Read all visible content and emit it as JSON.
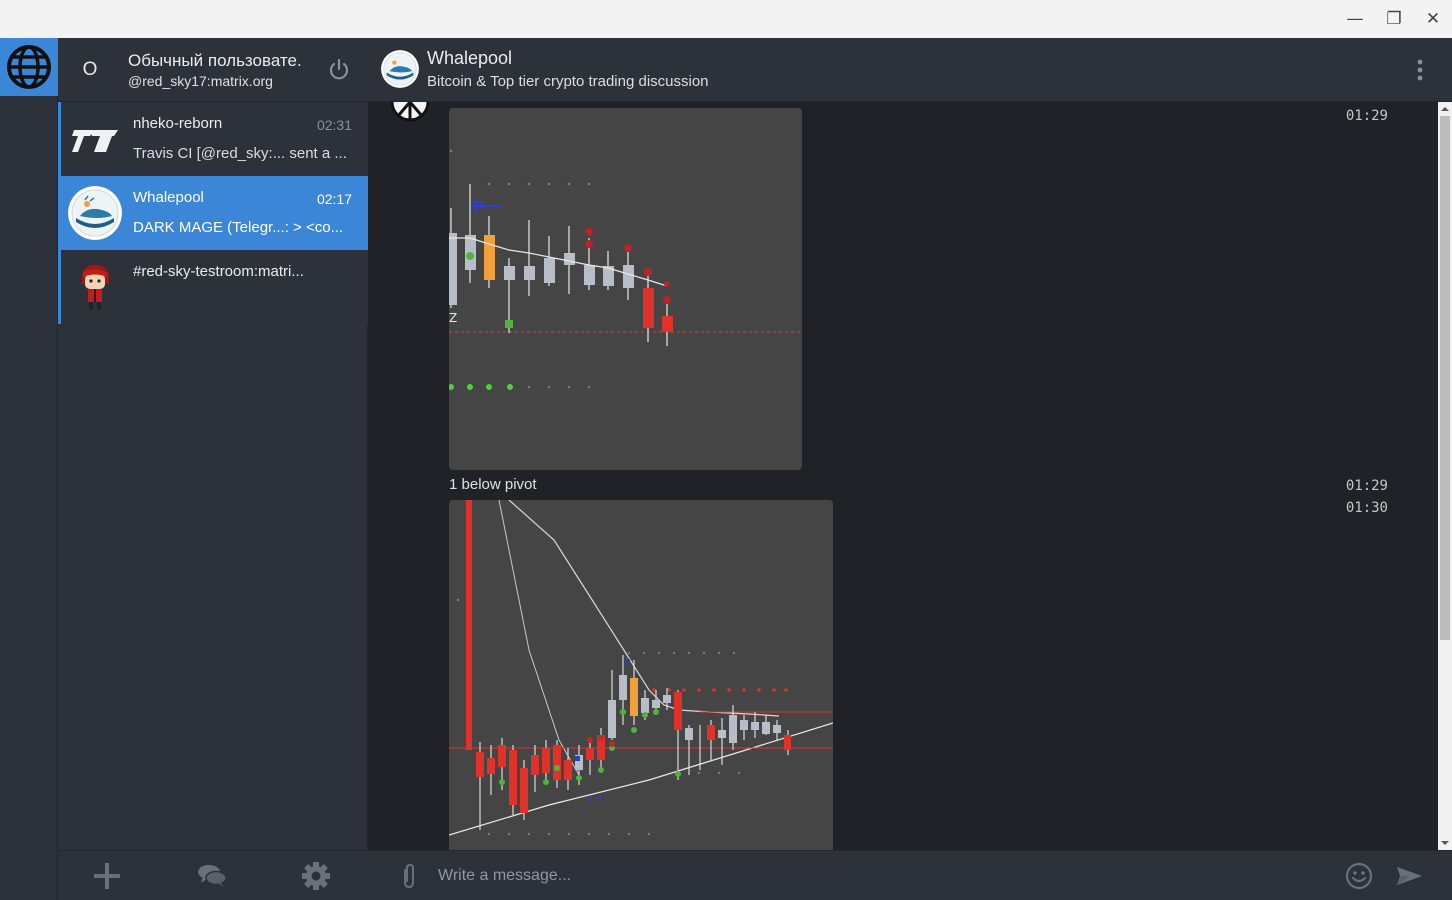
{
  "window": {
    "minimize_glyph": "—",
    "maximize_glyph": "❐",
    "close_glyph": "✕"
  },
  "user": {
    "initial": "O",
    "display_name": "Обычный пользовате.",
    "user_id": "@red_sky17:matrix.org"
  },
  "rooms": [
    {
      "name": "nheko-reborn",
      "time": "02:31",
      "last_message": "Travis CI [@red_sky:... sent a ...",
      "avatar": "travis-logo",
      "active": false
    },
    {
      "name": "Whalepool",
      "time": "02:17",
      "last_message": "DARK MAGE (Telegr...: > <co...",
      "avatar": "whale-logo",
      "active": true
    },
    {
      "name": "#red-sky-testroom:matri...",
      "time": "",
      "last_message": "",
      "avatar": "red-sky-character",
      "active": false
    }
  ],
  "header": {
    "title": "Whalepool",
    "topic": "Bitcoin & Top tier crypto trading discussion"
  },
  "timeline": {
    "timestamps": [
      "01:29",
      "01:29",
      "01:30"
    ],
    "caption": "1 below pivot"
  },
  "composer": {
    "placeholder": "Write a message..."
  },
  "colors": {
    "accent": "#3c86d8",
    "sidebar_bg": "#2d3139",
    "timeline_bg": "#202228",
    "bull_candle": "#b8bec7",
    "bear_candle": "#e0322a",
    "orange_candle": "#f2a03b"
  }
}
